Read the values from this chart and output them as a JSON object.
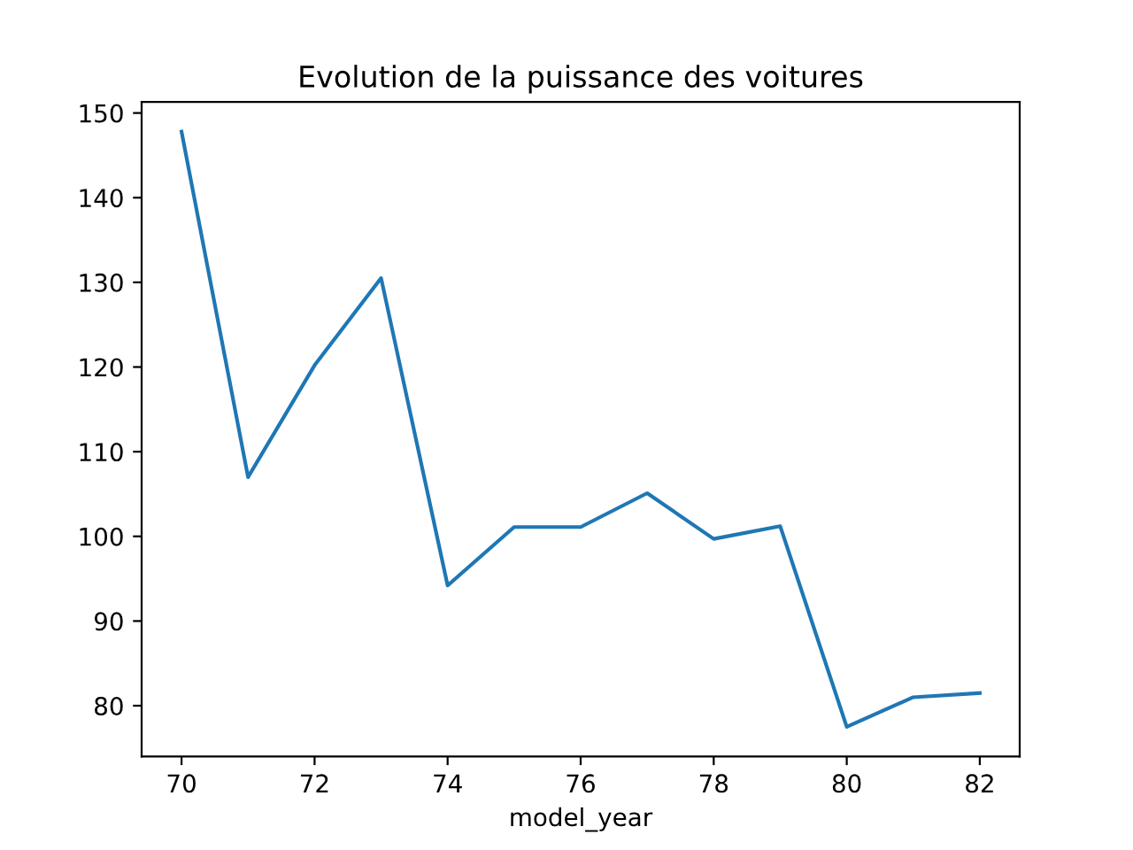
{
  "chart_data": {
    "type": "line",
    "title": "Evolution de la puissance des voitures",
    "xlabel": "model_year",
    "x": [
      70,
      71,
      72,
      73,
      74,
      75,
      76,
      77,
      78,
      79,
      80,
      81,
      82
    ],
    "series": [
      {
        "color": "#1f77b4",
        "values": [
          147.8,
          107.0,
          120.2,
          130.5,
          94.2,
          101.1,
          101.1,
          105.1,
          99.7,
          101.2,
          77.5,
          81.0,
          81.5
        ]
      }
    ],
    "xlim": [
      69.4,
      82.6
    ],
    "xticks": [
      70,
      72,
      74,
      76,
      78,
      80,
      82
    ],
    "ylim": [
      74.0,
      151.3
    ],
    "yticks": [
      80,
      90,
      100,
      110,
      120,
      130,
      140,
      150
    ],
    "grid": false,
    "legend": false,
    "marker": "none",
    "line_style": "solid"
  }
}
